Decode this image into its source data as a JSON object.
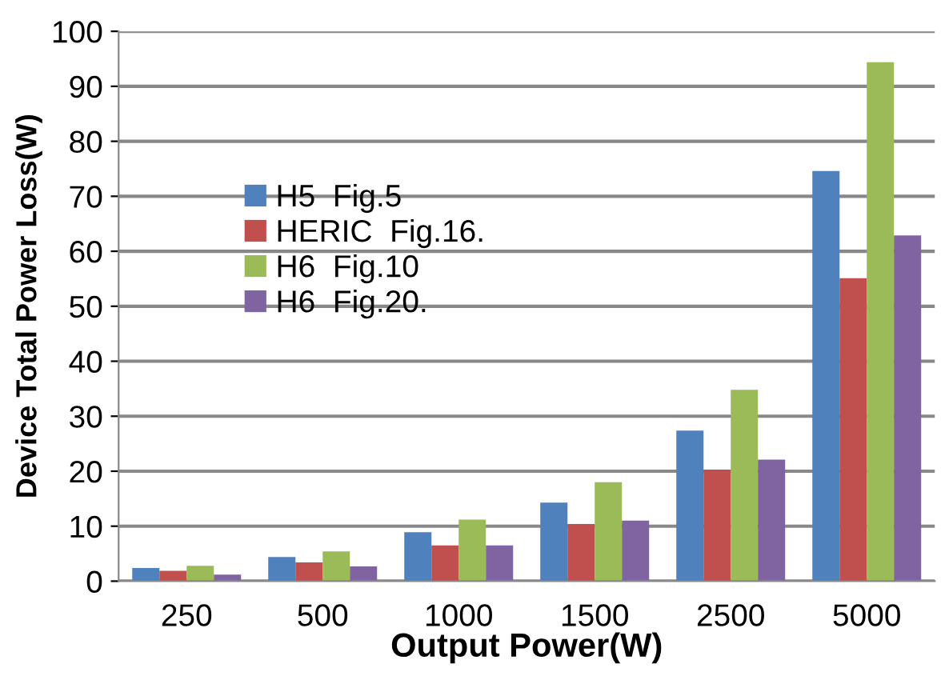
{
  "chart_data": {
    "type": "bar",
    "xlabel": "Output Power(W)",
    "ylabel": "Device Total Power Loss(W)",
    "categories": [
      "250",
      "500",
      "1000",
      "1500",
      "2500",
      "5000"
    ],
    "series": [
      {
        "name": "H5  Fig.5",
        "color": "#4f81bd",
        "values": [
          2.4,
          4.4,
          8.9,
          14.3,
          27.4,
          74.6
        ]
      },
      {
        "name": "HERIC  Fig.16.",
        "color": "#c0504d",
        "values": [
          1.9,
          3.4,
          6.5,
          10.4,
          20.3,
          55.1
        ]
      },
      {
        "name": "H6  Fig.10",
        "color": "#9bbb59",
        "values": [
          2.8,
          5.4,
          11.2,
          18.0,
          34.8,
          94.4
        ]
      },
      {
        "name": "H6  Fig.20.",
        "color": "#8064a2",
        "values": [
          1.2,
          2.7,
          6.5,
          11.0,
          22.1,
          62.9
        ]
      }
    ],
    "ylim": [
      0,
      100
    ],
    "yticks": [
      0,
      10,
      20,
      30,
      40,
      50,
      60,
      70,
      80,
      90,
      100
    ],
    "grid": "y",
    "legend": "center left"
  }
}
